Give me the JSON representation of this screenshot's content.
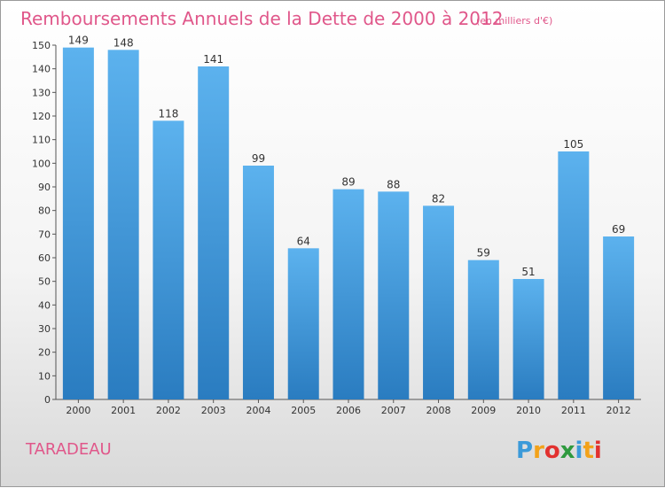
{
  "chart_data": {
    "type": "bar",
    "title": "Remboursements Annuels de la Dette de 2000 à 2012",
    "unit": "(en milliers d'€)",
    "categories": [
      "2000",
      "2001",
      "2002",
      "2003",
      "2004",
      "2005",
      "2006",
      "2007",
      "2008",
      "2009",
      "2010",
      "2011",
      "2012"
    ],
    "values": [
      149,
      148,
      118,
      141,
      99,
      64,
      89,
      88,
      82,
      59,
      51,
      105,
      69
    ],
    "ylim": [
      0,
      150
    ],
    "yticks": [
      0,
      10,
      20,
      30,
      40,
      50,
      60,
      70,
      80,
      90,
      100,
      110,
      120,
      130,
      140,
      150
    ],
    "grid": false,
    "bar_color": "#4a9fe0",
    "bar_color_light": "#5cb2ee",
    "bar_color_dark": "#2a7cc0"
  },
  "place_name": "TARADEAU",
  "logo": {
    "text": "Proxiti",
    "letters": [
      {
        "ch": "P",
        "color": "#3b9ad9"
      },
      {
        "ch": "r",
        "color": "#f3a21a"
      },
      {
        "ch": "o",
        "color": "#e2312f"
      },
      {
        "ch": "x",
        "color": "#2e9a3e"
      },
      {
        "ch": "i",
        "color": "#3b9ad9"
      },
      {
        "ch": "t",
        "color": "#f3a21a"
      },
      {
        "ch": "i",
        "color": "#e2312f"
      }
    ]
  }
}
